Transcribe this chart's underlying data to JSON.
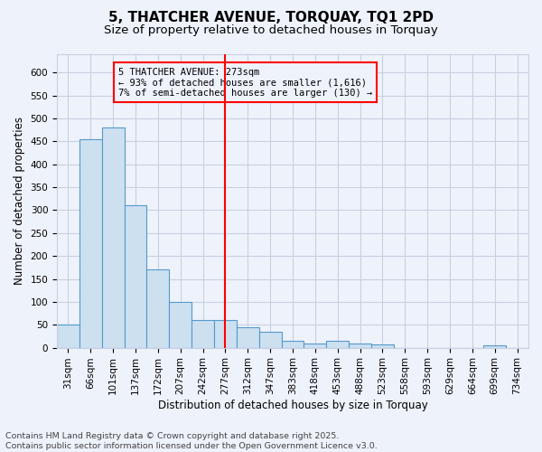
{
  "title": "5, THATCHER AVENUE, TORQUAY, TQ1 2PD",
  "subtitle": "Size of property relative to detached houses in Torquay",
  "xlabel": "Distribution of detached houses by size in Torquay",
  "ylabel": "Number of detached properties",
  "footer_line1": "Contains HM Land Registry data © Crown copyright and database right 2025.",
  "footer_line2": "Contains public sector information licensed under the Open Government Licence v3.0.",
  "bin_labels": [
    "31sqm",
    "66sqm",
    "101sqm",
    "137sqm",
    "172sqm",
    "207sqm",
    "242sqm",
    "277sqm",
    "312sqm",
    "347sqm",
    "383sqm",
    "418sqm",
    "453sqm",
    "488sqm",
    "523sqm",
    "558sqm",
    "593sqm",
    "629sqm",
    "664sqm",
    "699sqm",
    "734sqm"
  ],
  "bar_values": [
    50,
    455,
    480,
    310,
    170,
    100,
    60,
    60,
    45,
    35,
    15,
    10,
    15,
    10,
    8,
    0,
    0,
    0,
    0,
    5,
    0
  ],
  "bar_color": "#cce0f0",
  "bar_edge_color": "#5599cc",
  "property_line_x": 7.0,
  "annotation_text": "5 THATCHER AVENUE: 273sqm\n← 93% of detached houses are smaller (1,616)\n7% of semi-detached houses are larger (130) →",
  "ylim": [
    0,
    640
  ],
  "yticks": [
    0,
    50,
    100,
    150,
    200,
    250,
    300,
    350,
    400,
    450,
    500,
    550,
    600
  ],
  "background_color": "#eef2fb",
  "grid_color": "#c8d0e0",
  "title_fontsize": 11,
  "subtitle_fontsize": 9.5,
  "axis_fontsize": 8.5,
  "tick_fontsize": 7.5,
  "footer_fontsize": 6.8
}
